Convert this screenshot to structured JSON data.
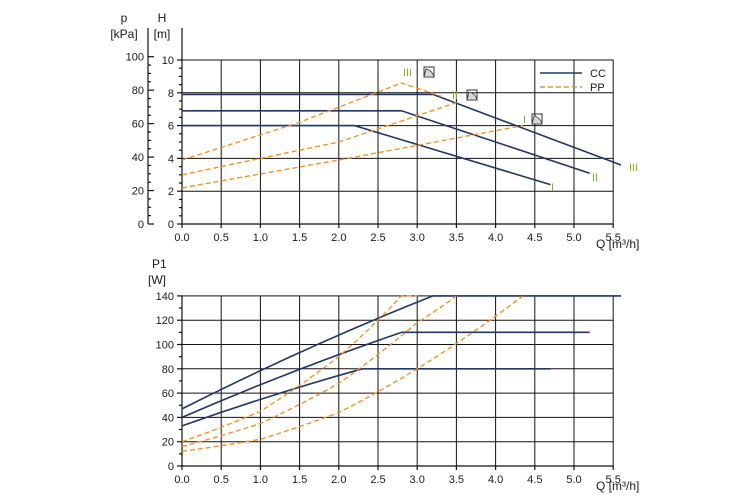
{
  "chart_data": [
    {
      "type": "line",
      "title": "",
      "xlabel": "Q [m³/h]",
      "ylabel_left": "p [kPa]",
      "ylabel_left_name": "p",
      "ylabel_left_unit": "[kPa]",
      "ylabel_right": "H [m]",
      "ylabel_right_name": "H",
      "ylabel_right_unit": "[m]",
      "xlim": [
        0,
        5.5
      ],
      "ylim": [
        0,
        11
      ],
      "x_ticks": [
        "0.0",
        "0.5",
        "1.0",
        "1.5",
        "2.0",
        "2.5",
        "3.0",
        "3.5",
        "4.0",
        "4.5",
        "5.0",
        "5.5"
      ],
      "h_ticks": [
        "0",
        "2",
        "4",
        "6",
        "8",
        "10"
      ],
      "p_ticks": [
        "0",
        "20",
        "40",
        "60",
        "80",
        "100"
      ],
      "grid": true,
      "legend": [
        {
          "name": "CC",
          "color": "#1f3864",
          "style": "solid"
        },
        {
          "name": "PP",
          "color": "#f0932b",
          "style": "dashed"
        }
      ],
      "legend_position": "top-right",
      "series": [
        {
          "group": "CC",
          "label": "I",
          "x": [
            0,
            2.2,
            4.7
          ],
          "y": [
            6.0,
            6.0,
            2.4
          ]
        },
        {
          "group": "CC",
          "label": "II",
          "x": [
            0,
            2.8,
            5.2
          ],
          "y": [
            6.9,
            6.9,
            3.1
          ]
        },
        {
          "group": "CC",
          "label": "III",
          "x": [
            0,
            3.2,
            5.6
          ],
          "y": [
            7.9,
            7.9,
            3.6
          ]
        },
        {
          "group": "PP",
          "label": "I",
          "x": [
            0,
            2.0,
            4.35
          ],
          "y": [
            2.2,
            3.9,
            6.0
          ]
        },
        {
          "group": "PP",
          "label": "II",
          "x": [
            0,
            2.0,
            3.5
          ],
          "y": [
            3.0,
            5.0,
            7.4
          ]
        },
        {
          "group": "PP",
          "label": "III",
          "x": [
            0,
            1.5,
            2.8,
            3.3
          ],
          "y": [
            3.9,
            6.2,
            8.6,
            7.8
          ]
        }
      ],
      "roman_labels": [
        "I",
        "II",
        "III"
      ]
    },
    {
      "type": "line",
      "title": "",
      "xlabel": "Q [m³/h]",
      "ylabel": "P1 [W]",
      "ylabel_name": "P1",
      "ylabel_unit": "[W]",
      "xlim": [
        0,
        5.5
      ],
      "ylim": [
        0,
        140
      ],
      "x_ticks": [
        "0.0",
        "0.5",
        "1.0",
        "1.5",
        "2.0",
        "2.5",
        "3.0",
        "3.5",
        "4.0",
        "4.5",
        "5.0",
        "5.5"
      ],
      "y_ticks": [
        "0",
        "20",
        "40",
        "60",
        "80",
        "100",
        "120",
        "140"
      ],
      "grid": true,
      "series": [
        {
          "group": "CC",
          "label": "I",
          "x": [
            0,
            2.3,
            4.7
          ],
          "y": [
            33,
            80,
            80
          ]
        },
        {
          "group": "CC",
          "label": "II",
          "x": [
            0,
            2.8,
            5.2
          ],
          "y": [
            40,
            110,
            110
          ]
        },
        {
          "group": "CC",
          "label": "III",
          "x": [
            0,
            3.2,
            5.6
          ],
          "y": [
            47,
            140,
            140
          ]
        },
        {
          "group": "PP",
          "label": "I",
          "x": [
            0,
            1.0,
            2.0,
            3.0,
            4.35
          ],
          "y": [
            12,
            22,
            44,
            80,
            140
          ]
        },
        {
          "group": "PP",
          "label": "II",
          "x": [
            0,
            1.0,
            2.0,
            3.0,
            3.5
          ],
          "y": [
            16,
            35,
            68,
            118,
            140
          ]
        },
        {
          "group": "PP",
          "label": "III",
          "x": [
            0,
            1.0,
            2.0,
            2.8,
            3.0
          ],
          "y": [
            20,
            45,
            90,
            140,
            140
          ]
        }
      ]
    }
  ]
}
